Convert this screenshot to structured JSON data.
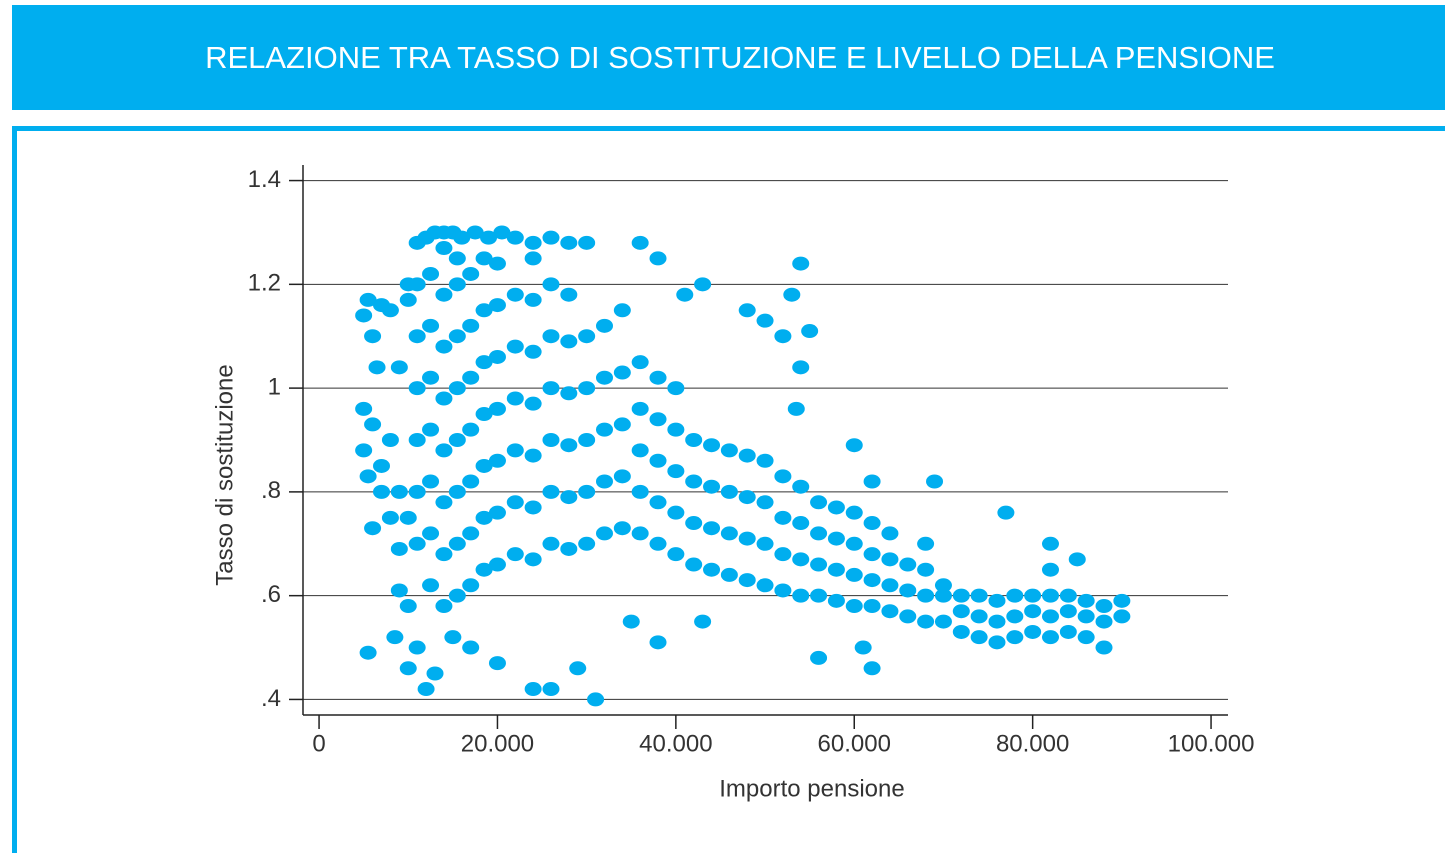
{
  "chart_data": {
    "type": "scatter",
    "title": "RELAZIONE TRA TASSO DI SOSTITUZIONE E LIVELLO DELLA PENSIONE",
    "xlabel": "Importo pensione",
    "ylabel": "Tasso di sostituzione",
    "color": "#00aeef",
    "grid": true,
    "xlim": [
      -1800,
      101900
    ],
    "ylim": [
      0.37,
      1.43
    ],
    "xticks": [
      0,
      {
        "value": 20000,
        "label": "20.000"
      },
      {
        "value": 40000,
        "label": "40.000"
      },
      {
        "value": 60000,
        "label": "60.000"
      },
      {
        "value": 80000,
        "label": "80.000"
      },
      {
        "value": 100000,
        "label": "100.000"
      }
    ],
    "yticks": [
      {
        "value": 0.4,
        "label": ".4"
      },
      {
        "value": 0.6,
        "label": ".6"
      },
      {
        "value": 0.8,
        "label": ".8"
      },
      1,
      1.2,
      1.4
    ],
    "x": [
      5000,
      5500,
      6000,
      7000,
      8000,
      5000,
      6000,
      5000,
      5500,
      7000,
      6000,
      5500,
      8000,
      9000,
      9000,
      10000,
      8500,
      10000,
      11000,
      12000,
      13000,
      10000,
      10000,
      11000,
      12000,
      13000,
      14000,
      15000,
      16000,
      17500,
      19000,
      20500,
      22000,
      24000,
      26000,
      28000,
      30000,
      11000,
      11000,
      11000,
      11000,
      11000,
      11000,
      12500,
      12500,
      12500,
      12500,
      12500,
      12500,
      12500,
      14000,
      14000,
      14000,
      14000,
      14000,
      14000,
      14000,
      14000,
      15500,
      15500,
      15500,
      15500,
      15500,
      15500,
      15500,
      15500,
      17000,
      17000,
      17000,
      17000,
      17000,
      17000,
      17000,
      18500,
      18500,
      18500,
      18500,
      18500,
      18500,
      18500,
      20000,
      20000,
      20000,
      20000,
      20000,
      20000,
      20000,
      22000,
      22000,
      22000,
      22000,
      22000,
      22000,
      24000,
      24000,
      24000,
      24000,
      24000,
      24000,
      24000,
      26000,
      26000,
      26000,
      26000,
      26000,
      26000,
      28000,
      28000,
      28000,
      28000,
      28000,
      28000,
      30000,
      30000,
      30000,
      30000,
      30000,
      32000,
      32000,
      32000,
      32000,
      32000,
      34000,
      34000,
      34000,
      34000,
      34000,
      36000,
      36000,
      36000,
      36000,
      36000,
      38000,
      38000,
      38000,
      38000,
      38000,
      40000,
      40000,
      40000,
      40000,
      40000,
      42000,
      42000,
      42000,
      42000,
      44000,
      44000,
      44000,
      44000,
      46000,
      46000,
      46000,
      46000,
      48000,
      48000,
      48000,
      48000,
      50000,
      50000,
      50000,
      50000,
      52000,
      52000,
      52000,
      52000,
      54000,
      54000,
      54000,
      54000,
      56000,
      56000,
      56000,
      56000,
      58000,
      58000,
      58000,
      58000,
      60000,
      60000,
      60000,
      60000,
      62000,
      62000,
      62000,
      62000,
      64000,
      64000,
      64000,
      64000,
      66000,
      66000,
      66000,
      68000,
      68000,
      68000,
      68000,
      70000,
      70000,
      70000,
      72000,
      72000,
      72000,
      74000,
      74000,
      74000,
      76000,
      76000,
      76000,
      78000,
      78000,
      78000,
      80000,
      80000,
      80000,
      82000,
      82000,
      82000,
      82000,
      84000,
      84000,
      84000,
      86000,
      86000,
      86000,
      88000,
      88000,
      88000,
      90000,
      90000,
      36000,
      38000,
      41000,
      43000,
      48000,
      50000,
      52000,
      53000,
      54000,
      55000,
      54000,
      53500,
      60000,
      62000,
      69000,
      77000,
      82000,
      85000,
      56000,
      61000,
      62000,
      29000,
      31000,
      24000,
      26000,
      35000,
      38000,
      43000,
      20000,
      17000,
      15000,
      10000,
      9000,
      8000,
      7000,
      6500,
      9000
    ],
    "values": [
      1.14,
      1.17,
      1.1,
      1.16,
      1.15,
      0.96,
      0.93,
      0.88,
      0.83,
      0.8,
      0.73,
      0.49,
      0.75,
      0.69,
      0.61,
      0.58,
      0.52,
      0.46,
      0.5,
      0.42,
      0.45,
      1.2,
      1.17,
      1.28,
      1.29,
      1.3,
      1.3,
      1.3,
      1.29,
      1.3,
      1.29,
      1.3,
      1.29,
      1.28,
      1.29,
      1.28,
      1.28,
      0.8,
      0.9,
      1.0,
      1.1,
      1.2,
      0.7,
      0.62,
      0.72,
      0.82,
      0.92,
      1.02,
      1.12,
      1.22,
      0.58,
      0.68,
      0.78,
      0.88,
      0.98,
      1.08,
      1.18,
      1.27,
      0.6,
      0.7,
      0.8,
      0.9,
      1.0,
      1.1,
      1.2,
      1.25,
      0.62,
      0.72,
      0.82,
      0.92,
      1.02,
      1.12,
      1.22,
      0.65,
      0.75,
      0.85,
      0.95,
      1.05,
      1.15,
      1.25,
      0.66,
      0.76,
      0.86,
      0.96,
      1.06,
      1.16,
      1.24,
      0.68,
      0.78,
      0.88,
      0.98,
      1.08,
      1.18,
      0.67,
      0.77,
      0.87,
      0.97,
      1.07,
      1.17,
      1.25,
      0.7,
      0.8,
      0.9,
      1.0,
      1.1,
      1.2,
      0.69,
      0.79,
      0.89,
      0.99,
      1.09,
      1.18,
      0.7,
      0.8,
      0.9,
      1.0,
      1.1,
      0.72,
      0.82,
      0.92,
      1.02,
      1.12,
      0.73,
      0.83,
      0.93,
      1.03,
      1.15,
      0.72,
      0.8,
      0.88,
      0.96,
      1.05,
      0.7,
      0.78,
      0.86,
      0.94,
      1.02,
      0.68,
      0.76,
      0.84,
      0.92,
      1.0,
      0.66,
      0.74,
      0.82,
      0.9,
      0.65,
      0.73,
      0.81,
      0.89,
      0.64,
      0.72,
      0.8,
      0.88,
      0.63,
      0.71,
      0.79,
      0.87,
      0.62,
      0.7,
      0.78,
      0.86,
      0.61,
      0.68,
      0.75,
      0.83,
      0.6,
      0.67,
      0.74,
      0.81,
      0.6,
      0.66,
      0.72,
      0.78,
      0.59,
      0.65,
      0.71,
      0.77,
      0.58,
      0.64,
      0.7,
      0.76,
      0.58,
      0.63,
      0.68,
      0.74,
      0.57,
      0.62,
      0.67,
      0.72,
      0.56,
      0.61,
      0.66,
      0.55,
      0.6,
      0.65,
      0.7,
      0.55,
      0.6,
      0.62,
      0.53,
      0.57,
      0.6,
      0.52,
      0.56,
      0.6,
      0.51,
      0.55,
      0.59,
      0.52,
      0.56,
      0.6,
      0.53,
      0.57,
      0.6,
      0.52,
      0.56,
      0.6,
      0.65,
      0.53,
      0.57,
      0.6,
      0.52,
      0.56,
      0.59,
      0.5,
      0.55,
      0.58,
      0.56,
      0.59,
      1.28,
      1.25,
      1.18,
      1.2,
      1.15,
      1.13,
      1.1,
      1.18,
      1.24,
      1.11,
      1.04,
      0.96,
      0.89,
      0.82,
      0.82,
      0.76,
      0.7,
      0.67,
      0.48,
      0.5,
      0.46,
      0.46,
      0.4,
      0.42,
      0.42,
      0.55,
      0.51,
      0.55,
      0.47,
      0.5,
      0.52,
      0.75,
      0.8,
      0.9,
      0.85,
      1.04,
      1.04
    ]
  }
}
